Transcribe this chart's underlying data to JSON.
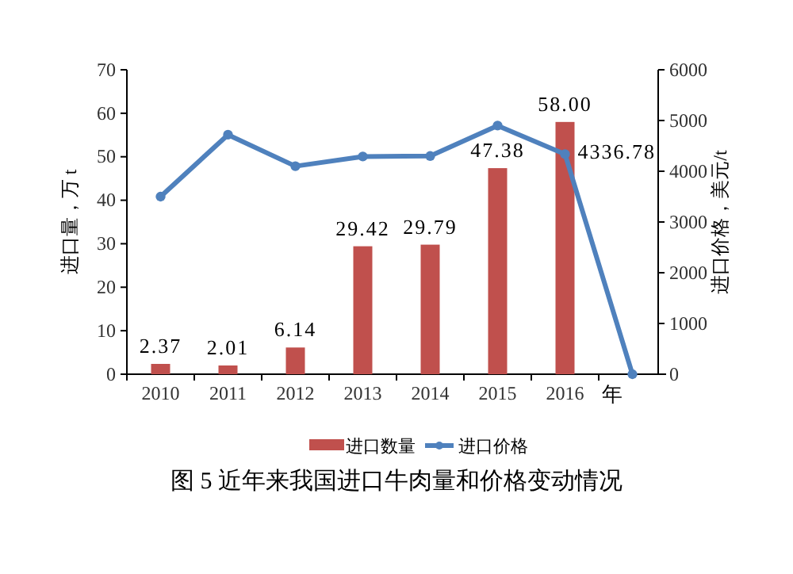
{
  "chart_data": {
    "type": "bar",
    "title": "图 5 近年来我国进口牛肉量和价格变动情况",
    "xlabel": "年",
    "ylabel": "进口量，万 t",
    "y2label": "进口价格，美元/t",
    "categories": [
      "2010",
      "2011",
      "2012",
      "2013",
      "2014",
      "2015",
      "2016",
      null
    ],
    "series": [
      {
        "name": "进口数量",
        "color": "#c0504d",
        "values": [
          2.37,
          2.01,
          6.14,
          29.42,
          29.79,
          47.38,
          58.0,
          null
        ],
        "value_labels": [
          "2.37",
          "2.01",
          "6.14",
          "29.42",
          "29.79",
          "47.38",
          "58.00",
          null
        ]
      },
      {
        "name": "进口价格",
        "type": "line",
        "axis": "y2",
        "color": "#4f81bd",
        "marker": "circle",
        "values": [
          3500,
          4720,
          4100,
          4290,
          4300,
          4900,
          4336.78,
          0
        ],
        "value_labels": [
          null,
          null,
          null,
          null,
          null,
          null,
          "4336.78",
          null
        ]
      }
    ],
    "ylim": [
      0,
      70
    ],
    "yticks": [
      0,
      10,
      20,
      30,
      40,
      50,
      60,
      70
    ],
    "y2lim": [
      0,
      6000
    ],
    "y2ticks": [
      0,
      1000,
      2000,
      3000,
      4000,
      5000,
      6000
    ],
    "legend": "bottom",
    "grid": false
  }
}
